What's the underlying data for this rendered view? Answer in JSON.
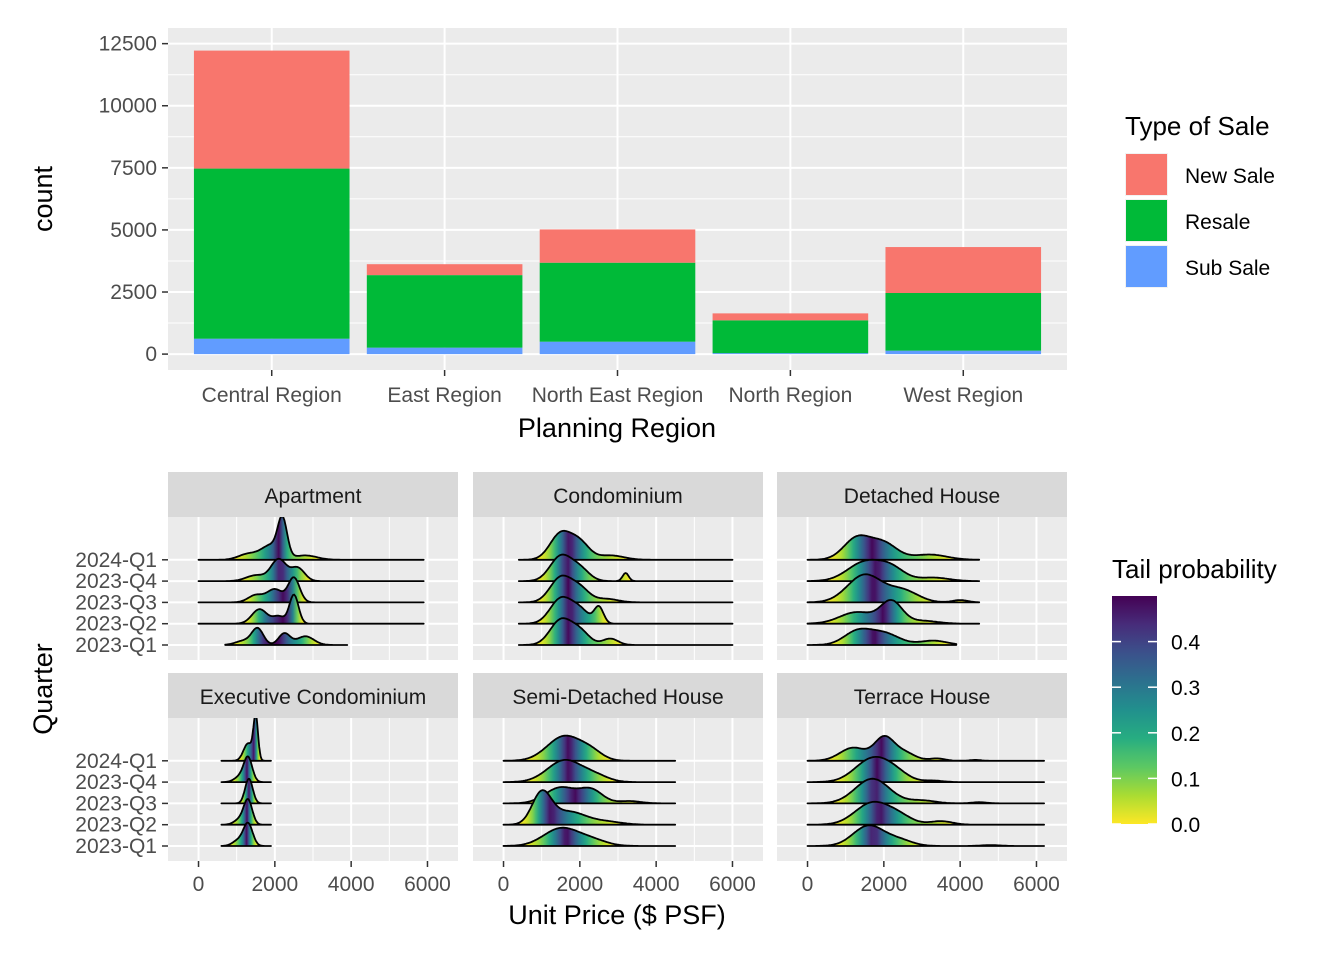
{
  "chart_data": [
    {
      "type": "bar",
      "stacked": true,
      "xlabel": "Planning Region",
      "ylabel": "count",
      "ylim": [
        0,
        12500
      ],
      "yticks": [
        0,
        2500,
        5000,
        7500,
        10000,
        12500
      ],
      "categories": [
        "Central Region",
        "East Region",
        "North East Region",
        "North Region",
        "West Region"
      ],
      "series": [
        {
          "name": "Sub Sale",
          "color": "#619CFF",
          "values": [
            620,
            260,
            500,
            40,
            140
          ]
        },
        {
          "name": "Resale",
          "color": "#00BA38",
          "values": [
            6850,
            2920,
            3180,
            1320,
            2320
          ]
        },
        {
          "name": "New Sale",
          "color": "#F8766D",
          "values": [
            4750,
            440,
            1340,
            280,
            1850
          ]
        }
      ],
      "legend": {
        "title": "Type of Sale",
        "placement": "right",
        "order": [
          "New Sale",
          "Resale",
          "Sub Sale"
        ]
      }
    },
    {
      "type": "ridgeline",
      "xlabel": "Unit Price ($ PSF)",
      "ylabel": "Quarter",
      "xlim": [
        0,
        6000
      ],
      "xticks": [
        0,
        2000,
        4000,
        6000
      ],
      "quarters": [
        "2023-Q1",
        "2023-Q2",
        "2023-Q3",
        "2023-Q4",
        "2024-Q1"
      ],
      "fill_scale": {
        "title": "Tail probability",
        "palette": "viridis",
        "range": [
          0.0,
          0.5
        ],
        "ticks": [
          "0.0",
          "0.1",
          "0.2",
          "0.3",
          "0.4"
        ]
      },
      "panels": [
        {
          "title": "Apartment",
          "ridges": [
            {
              "quarter": "2023-Q1",
              "range": [
                700,
                3900
              ],
              "peaks": [
                [
                  1550,
                  0.55,
                  150
                ],
                [
                  2250,
                  0.4,
                  150
                ],
                [
                  2800,
                  0.3,
                  220
                ],
                [
                  1200,
                  0.15,
                  220
                ]
              ]
            },
            {
              "quarter": "2023-Q2",
              "range": [
                0,
                5900
              ],
              "peaks": [
                [
                  1600,
                  0.5,
                  200
                ],
                [
                  2500,
                  1.0,
                  120
                ],
                [
                  2100,
                  0.25,
                  150
                ]
              ]
            },
            {
              "quarter": "2023-Q3",
              "range": [
                0,
                5900
              ],
              "peaks": [
                [
                  2000,
                  0.45,
                  200
                ],
                [
                  2500,
                  0.85,
                  150
                ],
                [
                  1500,
                  0.25,
                  200
                ]
              ]
            },
            {
              "quarter": "2023-Q4",
              "range": [
                0,
                5900
              ],
              "peaks": [
                [
                  2100,
                  0.75,
                  200
                ],
                [
                  2600,
                  0.45,
                  180
                ],
                [
                  1500,
                  0.2,
                  250
                ]
              ]
            },
            {
              "quarter": "2024-Q1",
              "range": [
                0,
                5900
              ],
              "peaks": [
                [
                  2200,
                  1.25,
                  120
                ],
                [
                  1900,
                  0.5,
                  250
                ],
                [
                  1300,
                  0.2,
                  250
                ],
                [
                  2800,
                  0.15,
                  300
                ]
              ]
            }
          ]
        },
        {
          "title": "Condominium",
          "ridges": [
            {
              "quarter": "2023-Q1",
              "range": [
                400,
                6000
              ],
              "peaks": [
                [
                  1500,
                  0.85,
                  280
                ],
                [
                  2000,
                  0.45,
                  250
                ],
                [
                  2800,
                  0.22,
                  200
                ]
              ]
            },
            {
              "quarter": "2023-Q2",
              "range": [
                400,
                6000
              ],
              "peaks": [
                [
                  1500,
                  0.85,
                  280
                ],
                [
                  2000,
                  0.45,
                  250
                ],
                [
                  2500,
                  0.55,
                  120
                ]
              ]
            },
            {
              "quarter": "2023-Q3",
              "range": [
                400,
                6000
              ],
              "peaks": [
                [
                  1500,
                  0.85,
                  280
                ],
                [
                  2000,
                  0.45,
                  250
                ],
                [
                  2700,
                  0.12,
                  300
                ]
              ]
            },
            {
              "quarter": "2023-Q4",
              "range": [
                400,
                6000
              ],
              "peaks": [
                [
                  1500,
                  0.85,
                  280
                ],
                [
                  2000,
                  0.4,
                  250
                ],
                [
                  3200,
                  0.28,
                  80
                ]
              ]
            },
            {
              "quarter": "2024-Q1",
              "range": [
                400,
                6000
              ],
              "peaks": [
                [
                  1500,
                  0.9,
                  280
                ],
                [
                  2000,
                  0.55,
                  250
                ],
                [
                  2800,
                  0.15,
                  350
                ]
              ]
            }
          ]
        },
        {
          "title": "Detached House",
          "ridges": [
            {
              "quarter": "2023-Q1",
              "range": [
                0,
                3900
              ],
              "peaks": [
                [
                  1300,
                  0.45,
                  350
                ],
                [
                  2000,
                  0.4,
                  400
                ],
                [
                  3300,
                  0.15,
                  350
                ]
              ]
            },
            {
              "quarter": "2023-Q2",
              "range": [
                0,
                4500
              ],
              "peaks": [
                [
                  1300,
                  0.4,
                  450
                ],
                [
                  2200,
                  0.75,
                  280
                ],
                [
                  3000,
                  0.1,
                  400
                ]
              ]
            },
            {
              "quarter": "2023-Q3",
              "range": [
                0,
                4500
              ],
              "peaks": [
                [
                  1500,
                  0.95,
                  450
                ],
                [
                  2500,
                  0.4,
                  400
                ],
                [
                  4000,
                  0.08,
                  200
                ]
              ]
            },
            {
              "quarter": "2023-Q4",
              "range": [
                0,
                4500
              ],
              "peaks": [
                [
                  1500,
                  0.65,
                  450
                ],
                [
                  2200,
                  0.4,
                  350
                ],
                [
                  3300,
                  0.12,
                  400
                ]
              ]
            },
            {
              "quarter": "2024-Q1",
              "range": [
                0,
                4500
              ],
              "peaks": [
                [
                  1300,
                  0.75,
                  350
                ],
                [
                  2000,
                  0.55,
                  350
                ],
                [
                  3200,
                  0.18,
                  450
                ]
              ]
            }
          ]
        },
        {
          "title": "Executive Condominium",
          "ridges": [
            {
              "quarter": "2023-Q1",
              "range": [
                600,
                1900
              ],
              "peaks": [
                [
                  1300,
                  0.75,
                  120
                ],
                [
                  1050,
                  0.2,
                  150
                ]
              ]
            },
            {
              "quarter": "2023-Q2",
              "range": [
                600,
                1900
              ],
              "peaks": [
                [
                  1300,
                  0.8,
                  110
                ],
                [
                  1100,
                  0.2,
                  150
                ]
              ]
            },
            {
              "quarter": "2023-Q3",
              "range": [
                600,
                1900
              ],
              "peaks": [
                [
                  1320,
                  0.85,
                  100
                ]
              ]
            },
            {
              "quarter": "2023-Q4",
              "range": [
                600,
                1900
              ],
              "peaks": [
                [
                  1300,
                  0.8,
                  110
                ],
                [
                  1100,
                  0.2,
                  150
                ]
              ]
            },
            {
              "quarter": "2024-Q1",
              "range": [
                600,
                1900
              ],
              "peaks": [
                [
                  1500,
                  1.45,
                  60
                ],
                [
                  1300,
                  0.6,
                  120
                ]
              ]
            }
          ]
        },
        {
          "title": "Semi-Detached House",
          "ridges": [
            {
              "quarter": "2023-Q1",
              "range": [
                0,
                4500
              ],
              "peaks": [
                [
                  1500,
                  0.6,
                  450
                ],
                [
                  2300,
                  0.2,
                  400
                ]
              ]
            },
            {
              "quarter": "2023-Q2",
              "range": [
                0,
                4500
              ],
              "peaks": [
                [
                  1000,
                  1.05,
                  250
                ],
                [
                  1700,
                  0.45,
                  450
                ],
                [
                  2700,
                  0.1,
                  400
                ]
              ]
            },
            {
              "quarter": "2023-Q3",
              "range": [
                0,
                4500
              ],
              "peaks": [
                [
                  1500,
                  0.55,
                  400
                ],
                [
                  2300,
                  0.45,
                  300
                ],
                [
                  3300,
                  0.08,
                  300
                ]
              ]
            },
            {
              "quarter": "2023-Q4",
              "range": [
                0,
                4500
              ],
              "peaks": [
                [
                  1600,
                  0.75,
                  450
                ],
                [
                  2400,
                  0.2,
                  350
                ]
              ]
            },
            {
              "quarter": "2024-Q1",
              "range": [
                0,
                4500
              ],
              "peaks": [
                [
                  1600,
                  0.85,
                  450
                ],
                [
                  2300,
                  0.25,
                  300
                ]
              ]
            }
          ]
        },
        {
          "title": "Terrace House",
          "ridges": [
            {
              "quarter": "2023-Q1",
              "range": [
                0,
                6200
              ],
              "peaks": [
                [
                  1600,
                  0.7,
                  400
                ],
                [
                  2400,
                  0.2,
                  350
                ],
                [
                  4800,
                  0.03,
                  250
                ]
              ]
            },
            {
              "quarter": "2023-Q2",
              "range": [
                0,
                6200
              ],
              "peaks": [
                [
                  1700,
                  0.75,
                  450
                ],
                [
                  2400,
                  0.25,
                  350
                ],
                [
                  3500,
                  0.12,
                  300
                ]
              ]
            },
            {
              "quarter": "2023-Q3",
              "range": [
                0,
                6200
              ],
              "peaks": [
                [
                  1700,
                  0.85,
                  450
                ],
                [
                  3000,
                  0.1,
                  350
                ],
                [
                  4500,
                  0.04,
                  200
                ]
              ]
            },
            {
              "quarter": "2023-Q4",
              "range": [
                0,
                6200
              ],
              "peaks": [
                [
                  1700,
                  0.8,
                  450
                ],
                [
                  2300,
                  0.25,
                  350
                ],
                [
                  3300,
                  0.05,
                  250
                ]
              ]
            },
            {
              "quarter": "2024-Q1",
              "range": [
                0,
                6200
              ],
              "peaks": [
                [
                  1200,
                  0.45,
                  350
                ],
                [
                  2000,
                  0.75,
                  250
                ],
                [
                  2500,
                  0.3,
                  300
                ],
                [
                  3400,
                  0.08,
                  200
                ],
                [
                  4400,
                  0.03,
                  150
                ]
              ]
            }
          ]
        }
      ]
    }
  ]
}
